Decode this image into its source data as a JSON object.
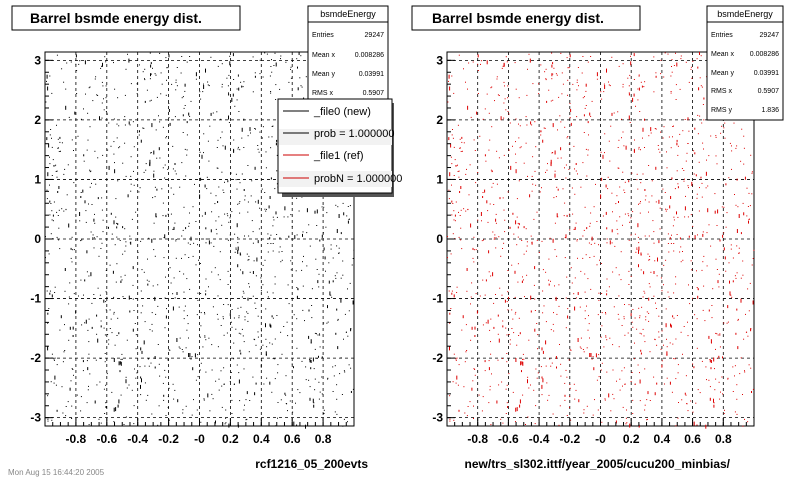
{
  "footer_text": "Mon Aug 15 16:44:20 2005",
  "chart_data": [
    {
      "type": "scatter",
      "title": "Barrel bsmde energy dist.",
      "xlabel": "rcf1216_05_200evts",
      "ylabel": "",
      "xlim": [
        -1.0,
        1.0
      ],
      "ylim": [
        -3.14,
        3.14
      ],
      "x_ticks": [
        "-0.8",
        "-0.6",
        "-0.4",
        "-0.2",
        "-0",
        "0.2",
        "0.4",
        "0.6",
        "0.8"
      ],
      "y_ticks": [
        "-3",
        "-2",
        "-1",
        "0",
        "1",
        "2",
        "3"
      ],
      "grid": true,
      "marker_color": "#000000",
      "stats": {
        "name": "bsmdeEnergy",
        "rows": [
          {
            "label": "Entries",
            "value": "29247"
          },
          {
            "label": "Mean x",
            "value": "0.008286"
          },
          {
            "label": "Mean y",
            "value": "0.03991"
          },
          {
            "label": "RMS x",
            "value": "0.5907"
          }
        ]
      },
      "legend": {
        "placement": "top-right",
        "entries": [
          {
            "label": "_file0 (new)",
            "color": "#000000"
          },
          {
            "label": "prob = 1.000000",
            "color": "#000000"
          },
          {
            "label": "_file1 (ref)",
            "color": "#cc0000"
          },
          {
            "label": "probN = 1.000000",
            "color": "#cc0000"
          }
        ]
      }
    },
    {
      "type": "scatter",
      "title": "Barrel bsmde energy dist.",
      "xlabel": "new/trs_sl302.ittf/year_2005/cucu200_minbias/",
      "ylabel": "",
      "xlim": [
        -1.0,
        1.0
      ],
      "ylim": [
        -3.14,
        3.14
      ],
      "x_ticks": [
        "-0.8",
        "-0.6",
        "-0.4",
        "-0.2",
        "-0",
        "0.2",
        "0.4",
        "0.6",
        "0.8"
      ],
      "y_ticks": [
        "-3",
        "-2",
        "-1",
        "0",
        "1",
        "2",
        "3"
      ],
      "grid": true,
      "marker_color": "#dd0000",
      "stats": {
        "name": "bsmdeEnergy",
        "rows": [
          {
            "label": "Entries",
            "value": "29247"
          },
          {
            "label": "Mean x",
            "value": "0.008286"
          },
          {
            "label": "Mean y",
            "value": "0.03991"
          },
          {
            "label": "RMS x",
            "value": "0.5907"
          },
          {
            "label": "RMS y",
            "value": "1.836"
          }
        ]
      }
    }
  ]
}
